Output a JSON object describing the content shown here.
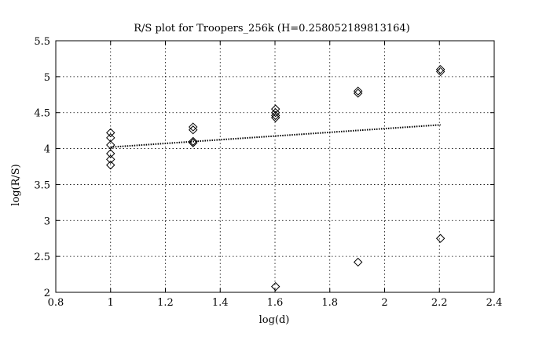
{
  "chart_data": {
    "type": "scatter",
    "title": "R/S plot for Troopers_256k (H=0.258052189813164)",
    "xlabel": "log(d)",
    "ylabel": "log(R/S)",
    "xlim": [
      0.8,
      2.4
    ],
    "ylim": [
      2,
      5.5
    ],
    "xticks": [
      0.8,
      1,
      1.2,
      1.4,
      1.6,
      1.8,
      2,
      2.2,
      2.4
    ],
    "xtick_labels": [
      "0.8",
      "1",
      "1.2",
      "1.4",
      "1.6",
      "1.8",
      "2",
      "2.2",
      "2.4"
    ],
    "yticks": [
      2,
      2.5,
      3,
      3.5,
      4,
      4.5,
      5,
      5.5
    ],
    "ytick_labels": [
      "2",
      "2.5",
      "3",
      "3.5",
      "4",
      "4.5",
      "5",
      "5.5"
    ],
    "grid": true,
    "points": [
      {
        "x": 1.0,
        "y": 4.22
      },
      {
        "x": 1.0,
        "y": 4.15
      },
      {
        "x": 1.0,
        "y": 4.05
      },
      {
        "x": 1.0,
        "y": 3.93
      },
      {
        "x": 1.0,
        "y": 3.85
      },
      {
        "x": 1.0,
        "y": 3.77
      },
      {
        "x": 1.301,
        "y": 4.3
      },
      {
        "x": 1.301,
        "y": 4.26
      },
      {
        "x": 1.301,
        "y": 4.1
      },
      {
        "x": 1.301,
        "y": 4.08
      },
      {
        "x": 1.602,
        "y": 4.55
      },
      {
        "x": 1.602,
        "y": 4.5
      },
      {
        "x": 1.602,
        "y": 4.46
      },
      {
        "x": 1.602,
        "y": 4.43
      },
      {
        "x": 1.602,
        "y": 2.08
      },
      {
        "x": 1.903,
        "y": 4.8
      },
      {
        "x": 1.903,
        "y": 4.77
      },
      {
        "x": 1.903,
        "y": 2.42
      },
      {
        "x": 2.204,
        "y": 5.1
      },
      {
        "x": 2.204,
        "y": 5.07
      },
      {
        "x": 2.204,
        "y": 2.75
      }
    ],
    "fit_line": {
      "x": [
        1.0,
        2.204
      ],
      "y": [
        4.02,
        4.33
      ],
      "style": "dotted"
    }
  }
}
